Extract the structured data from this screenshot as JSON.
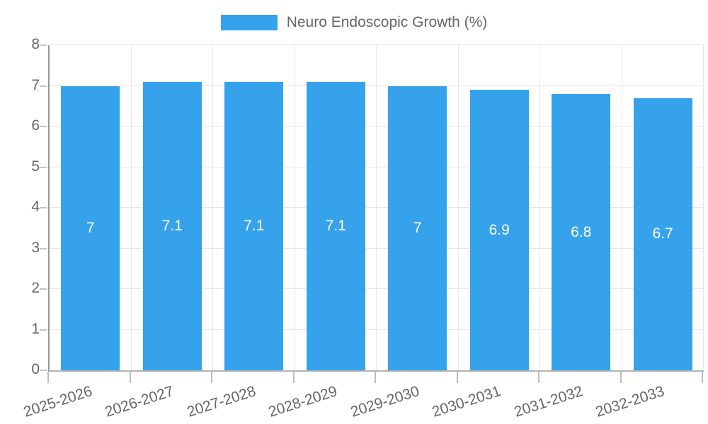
{
  "chart_data": {
    "type": "bar",
    "legend": "Neuro Endoscopic Growth (%)",
    "legend_position": "top",
    "categories": [
      "2025-2026",
      "2026-2027",
      "2027-2028",
      "2028-2029",
      "2029-2030",
      "2030-2031",
      "2031-2032",
      "2032-2033"
    ],
    "series": [
      {
        "name": "Neuro Endoscopic Growth (%)",
        "values": [
          7,
          7.1,
          7.1,
          7.1,
          7,
          6.9,
          6.8,
          6.7
        ],
        "value_labels": [
          "7",
          "7.1",
          "7.1",
          "7.1",
          "7",
          "6.9",
          "6.8",
          "6.7"
        ]
      }
    ],
    "title": "",
    "xlabel": "",
    "ylabel": "",
    "ylim": [
      0,
      8
    ],
    "yticks": [
      0,
      1,
      2,
      3,
      4,
      5,
      6,
      7,
      8
    ],
    "grid": true,
    "bar_color": "#36a2eb",
    "bar_label_color": "#ffffff",
    "axis_text_color": "#666666",
    "gridline_color": "#e6e6e6"
  }
}
